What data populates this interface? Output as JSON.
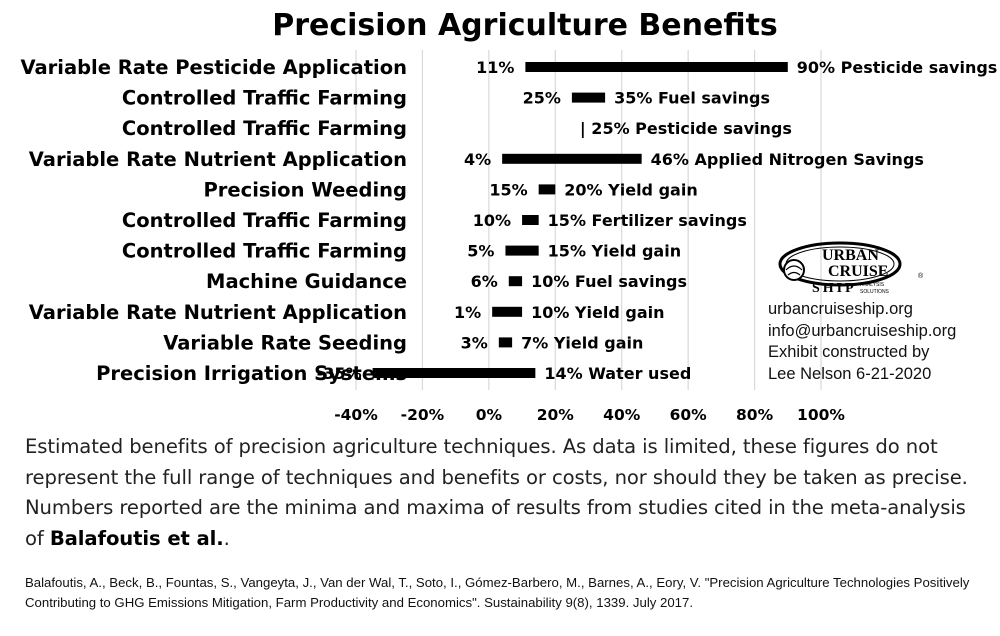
{
  "chart_data": {
    "type": "bar",
    "title": "Precision Agriculture Benefits",
    "categories": [
      "Variable Rate Pesticide Application",
      "Controlled Traffic Farming",
      "Controlled Traffic Farming",
      "Variable Rate Nutrient Application",
      "Precision Weeding",
      "Controlled Traffic Farming",
      "Controlled Traffic Farming",
      "Machine Guidance",
      "Variable Rate Nutrient Application",
      "Variable Rate Seeding",
      "Precision Irrigation Systems"
    ],
    "series": [
      {
        "values": [
          {
            "min": 11,
            "max": 90,
            "min_label": "11%",
            "max_label": "90% Pesticide savings"
          },
          {
            "min": 25,
            "max": 35,
            "min_label": "25%",
            "max_label": "35% Fuel savings"
          },
          {
            "min": 25,
            "max": 25,
            "min_label": "",
            "max_label": "| 25% Pesticide savings"
          },
          {
            "min": 4,
            "max": 46,
            "min_label": "4%",
            "max_label": "46% Applied Nitrogen Savings"
          },
          {
            "min": 15,
            "max": 20,
            "min_label": "15%",
            "max_label": "20% Yield gain"
          },
          {
            "min": 10,
            "max": 15,
            "min_label": "10%",
            "max_label": "15% Fertilizer savings"
          },
          {
            "min": 5,
            "max": 15,
            "min_label": "5%",
            "max_label": "15% Yield gain"
          },
          {
            "min": 6,
            "max": 10,
            "min_label": "6%",
            "max_label": "10% Fuel savings"
          },
          {
            "min": 1,
            "max": 10,
            "min_label": "1%",
            "max_label": "10% Yield gain"
          },
          {
            "min": 3,
            "max": 7,
            "min_label": "3%",
            "max_label": "7% Yield gain"
          },
          {
            "min": -35,
            "max": 14,
            "min_label": "-35%",
            "max_label": "14% Water used"
          }
        ]
      }
    ],
    "xlim": [
      -40,
      100
    ],
    "xticks": [
      -40,
      -20,
      0,
      20,
      40,
      60,
      80,
      100
    ],
    "xtick_labels": [
      "-40%",
      "-20%",
      "0%",
      "20%",
      "40%",
      "60%",
      "80%",
      "100%"
    ],
    "grid": true,
    "orientation": "horizontal",
    "bar_color": "#000000",
    "grid_color": "#d9d9d9"
  },
  "caption": {
    "text": "Estimated benefits of precision agriculture techniques. As data is limited, these figures do not represent the full range of techniques and benefits or costs, nor should they be taken as precise. Numbers reported are the minima and maxima of results from studies cited in the meta-analysis of ",
    "bold": "Balafoutis et al.",
    "end": "."
  },
  "reference": "Balafoutis, A., Beck, B., Fountas, S., Vangeyta, J., Van der Wal, T., Soto, I., Gómez-Barbero, M., Barnes, A., Eory, V. \"Precision Agriculture Technologies Positively Contributing to GHG Emissions Mitigation, Farm Productivity and Economics\". Sustainability 9(8), 1339. July 2017.",
  "contact": {
    "website": "urbancruiseship.org",
    "email": "info@urbancruiseship.org",
    "line3": "Exhibit constructed by",
    "line4": "Lee Nelson 6-21-2020"
  },
  "logo": {
    "word1": "URBAN",
    "word2": "CRUISE",
    "word3": "SHIP",
    "sub1": "ANALYSIS",
    "sub2": "SOLUTIONS",
    "reg": "®"
  }
}
